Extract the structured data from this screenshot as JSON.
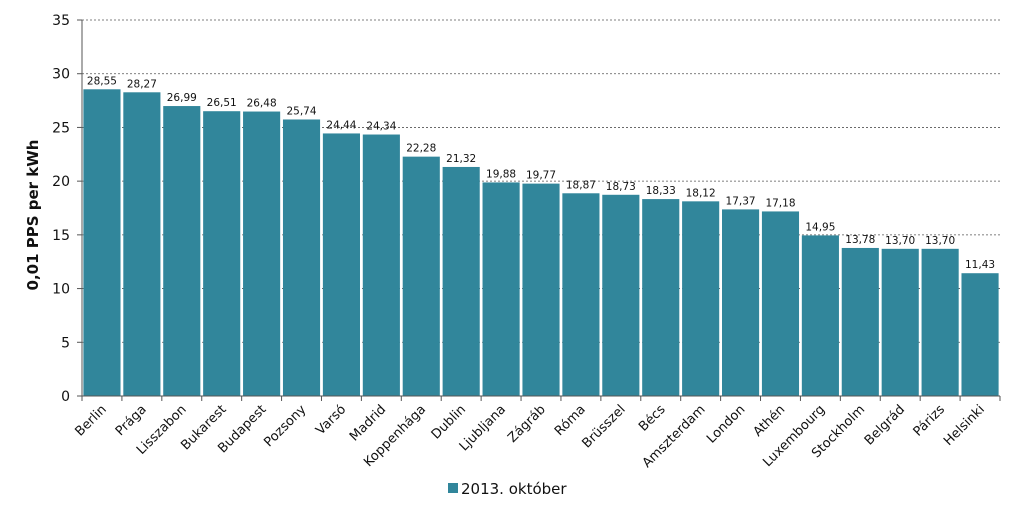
{
  "chart_data": {
    "type": "bar",
    "ylabel": "0,01 PPS per kWh",
    "ylim": [
      0,
      35
    ],
    "yticks": [
      "0",
      "5",
      "10",
      "15",
      "20",
      "25",
      "30",
      "35"
    ],
    "grid": true,
    "legend_position": "bottom",
    "color": "#31869b",
    "categories": [
      "Berlin",
      "Prága",
      "Lisszabon",
      "Bukarest",
      "Budapest",
      "Pozsony",
      "Varsó",
      "Madrid",
      "Koppenhága",
      "Dublin",
      "Ljubljana",
      "Zágráb",
      "Róma",
      "Brüsszel",
      "Bécs",
      "Amszterdam",
      "London",
      "Athén",
      "Luxembourg",
      "Stockholm",
      "Belgrád",
      "Párizs",
      "Helsinki"
    ],
    "series": [
      {
        "name": "2013. október",
        "values": [
          28.55,
          28.27,
          26.99,
          26.51,
          26.48,
          25.74,
          24.44,
          24.34,
          22.28,
          21.32,
          19.88,
          19.77,
          18.87,
          18.73,
          18.33,
          18.12,
          17.37,
          17.18,
          14.95,
          13.78,
          13.7,
          13.7,
          11.43
        ],
        "labels": [
          "28,55",
          "28,27",
          "26,99",
          "26,51",
          "26,48",
          "25,74",
          "24,44",
          "24,34",
          "22,28",
          "21,32",
          "19,88",
          "19,77",
          "18,87",
          "18,73",
          "18,33",
          "18,12",
          "17,37",
          "17,18",
          "14,95",
          "13,78",
          "13,70",
          "13,70",
          "11,43"
        ]
      }
    ]
  }
}
